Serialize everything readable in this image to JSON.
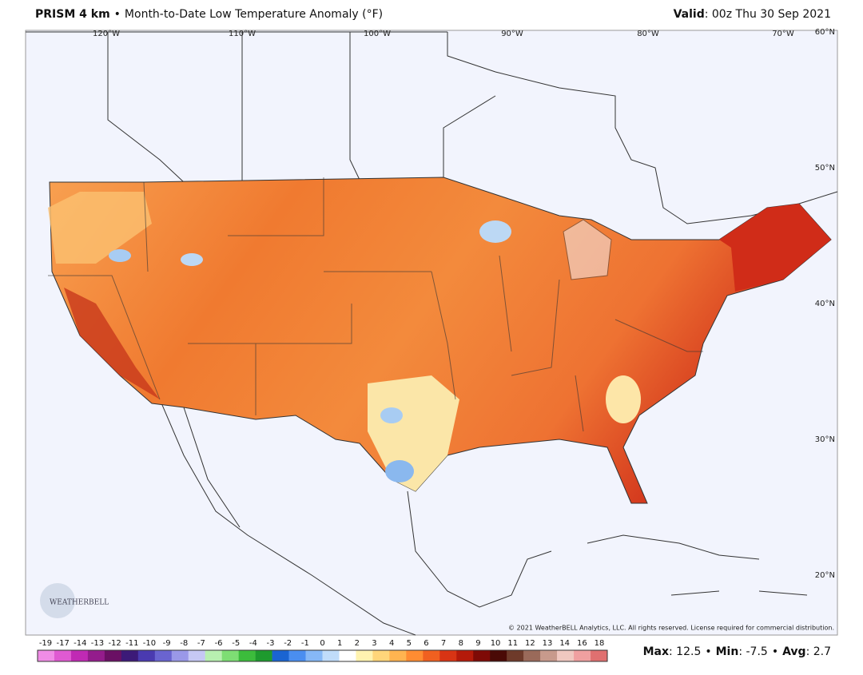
{
  "header": {
    "product": "PRISM 4 km",
    "separator": "•",
    "title": "Month-to-Date Low Temperature Anomaly (°F)",
    "valid_label": "Valid",
    "valid_value": ": 00z Thu 30 Sep 2021"
  },
  "map": {
    "longitudes": [
      "120°W",
      "110°W",
      "100°W",
      "90°W",
      "80°W",
      "70°W"
    ],
    "latitudes": [
      "60°N",
      "50°N",
      "40°N",
      "30°N",
      "20°N"
    ],
    "logo": "WEATHERBELL",
    "copyright": "© 2021 WeatherBELL Analytics, LLC. All rights reserved. License required for commercial distribution."
  },
  "colorbar": {
    "labels": [
      "-19",
      "-17",
      "-14",
      "-13",
      "-12",
      "-11",
      "-10",
      "-9",
      "-8",
      "-7",
      "-6",
      "-5",
      "-4",
      "-3",
      "-2",
      "-1",
      "0",
      "1",
      "2",
      "3",
      "4",
      "5",
      "6",
      "7",
      "8",
      "9",
      "10",
      "11",
      "12",
      "13",
      "14",
      "16",
      "18"
    ],
    "colors": [
      "#f08ce6",
      "#e05ad2",
      "#c02ab4",
      "#941c8c",
      "#6a1064",
      "#3c1a78",
      "#4a3ab0",
      "#6a64d0",
      "#9a98e8",
      "#c6c8f4",
      "#b8f0b0",
      "#7ede74",
      "#3cbc3c",
      "#1e9a2e",
      "#1a64d2",
      "#4a8ef0",
      "#86b8f6",
      "#c0dcfa",
      "#ffffff",
      "#fff3b0",
      "#ffd67a",
      "#ffb450",
      "#ff8c32",
      "#f06020",
      "#d83414",
      "#b41a0a",
      "#7e0a06",
      "#4a0a06",
      "#6e3a2a",
      "#9a6a5a",
      "#c89a8c",
      "#f0c8c0",
      "#f0a0a0",
      "#e07070"
    ]
  },
  "stats": {
    "separator": "•",
    "items": [
      {
        "label": "Max",
        "value": ": 12.5"
      },
      {
        "label": "Min",
        "value": ": -7.5"
      },
      {
        "label": "Avg",
        "value": ": 2.7"
      }
    ]
  }
}
